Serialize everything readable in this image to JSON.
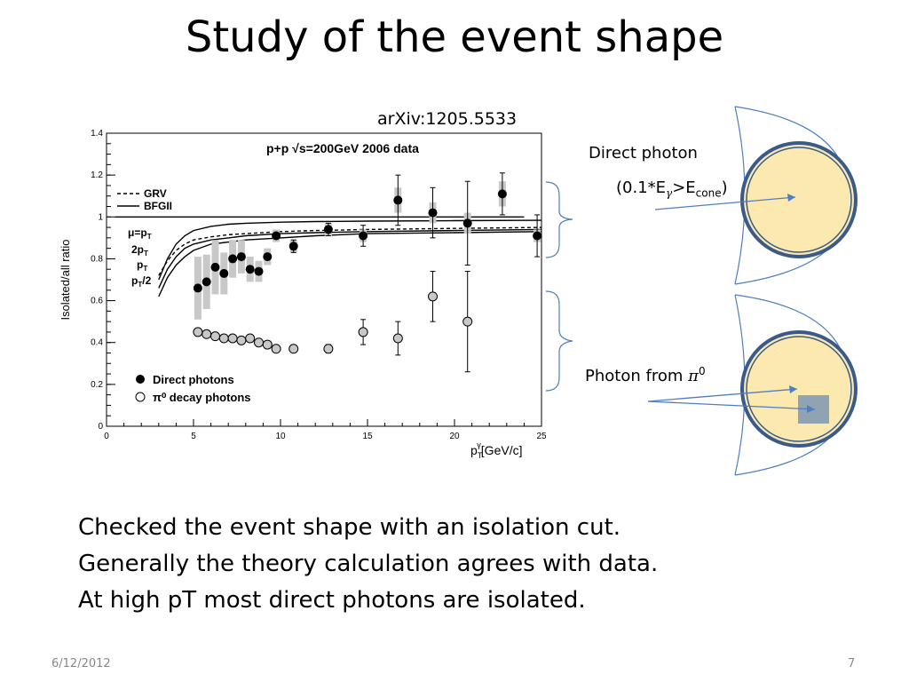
{
  "slide": {
    "title": "Study of the event shape",
    "reference": "arXiv:1205.5533",
    "bullets": [
      "Checked the event shape with an isolation cut.",
      "Generally the theory calculation agrees with data.",
      "At high pT most direct photons are isolated."
    ],
    "footer_date": "6/12/2012",
    "page_number": "7"
  },
  "diagram": {
    "direct_label": "Direct photon",
    "direct_cond_open": "(0.1*E",
    "direct_cond_gamma": "γ",
    "direct_cond_gt": ">E",
    "direct_cond_cone": "cone",
    "direct_cond_close": ")",
    "pi0_label": "Photon from ",
    "pi0_symbol": "π",
    "pi0_sup": "0",
    "colors": {
      "cone_fill": "#fbe9b0",
      "ring": "#3a5a8c",
      "arrow": "#4f7fbf",
      "brace": "#4f7fbf",
      "cluster": "#8fa3b3"
    }
  },
  "chart_data": {
    "type": "scatter",
    "header": "p+p   √s=200GeV 2006 data",
    "ylabel": "Isolated/all ratio",
    "xlabel": "p",
    "xlabel_sub": "T",
    "xlabel_sup": "γ",
    "xlabel_unit": "[GeV/c]",
    "xlim": [
      0,
      25
    ],
    "ylim": [
      0,
      1.4
    ],
    "xticks": [
      0,
      5,
      10,
      15,
      20,
      25
    ],
    "yticks": [
      0,
      0.2,
      0.4,
      0.6,
      0.8,
      1,
      1.2,
      1.4
    ],
    "legend_top": [
      {
        "name": "GRV",
        "style": "dashed"
      },
      {
        "name": "BFGII",
        "style": "solid"
      }
    ],
    "scale_labels": [
      "μ=p",
      "2p",
      "p",
      "p /2"
    ],
    "scale_label_text": {
      "mu": "μ=p",
      "mu_sub": "T",
      "two": "2p",
      "two_sub": "T",
      "one": "p",
      "one_sub": "T",
      "half": "p",
      "half_sub": "T",
      "half_tail": "/2"
    },
    "legend_bottom": [
      {
        "name": "Direct photons",
        "marker": "filled"
      },
      {
        "name": "π⁰ decay photons",
        "marker": "open"
      }
    ],
    "series": [
      {
        "name": "Direct photons",
        "marker": "filled",
        "points": [
          {
            "x": 5.25,
            "y": 0.66,
            "sys": 0.15
          },
          {
            "x": 5.75,
            "y": 0.69,
            "sys": 0.13
          },
          {
            "x": 6.25,
            "y": 0.76,
            "sys": 0.13
          },
          {
            "x": 6.75,
            "y": 0.73,
            "sys": 0.1
          },
          {
            "x": 7.25,
            "y": 0.8,
            "sys": 0.09
          },
          {
            "x": 7.75,
            "y": 0.81,
            "sys": 0.08
          },
          {
            "x": 8.25,
            "y": 0.75,
            "sys": 0.06
          },
          {
            "x": 8.75,
            "y": 0.74,
            "sys": 0.05
          },
          {
            "x": 9.25,
            "y": 0.81,
            "sys": 0.04
          },
          {
            "x": 9.75,
            "y": 0.91,
            "sys": 0.03
          },
          {
            "x": 10.75,
            "y": 0.86,
            "sys": 0.03,
            "err": 0.03
          },
          {
            "x": 12.75,
            "y": 0.94,
            "sys": 0.03,
            "err": 0.03
          },
          {
            "x": 14.75,
            "y": 0.91,
            "sys": 0.03,
            "err": 0.05
          },
          {
            "x": 16.75,
            "y": 1.08,
            "sys": 0.06,
            "err": 0.12
          },
          {
            "x": 18.75,
            "y": 1.02,
            "sys": 0.05,
            "err": 0.12
          },
          {
            "x": 20.75,
            "y": 0.97,
            "sys": 0.05,
            "err": 0.2
          },
          {
            "x": 22.75,
            "y": 1.11,
            "sys": 0.06,
            "err": 0.1
          },
          {
            "x": 24.75,
            "y": 0.91,
            "sys": 0.03,
            "err": 0.1
          }
        ]
      },
      {
        "name": "π⁰ decay photons",
        "marker": "open",
        "points": [
          {
            "x": 5.25,
            "y": 0.45
          },
          {
            "x": 5.75,
            "y": 0.44
          },
          {
            "x": 6.25,
            "y": 0.43
          },
          {
            "x": 6.75,
            "y": 0.42
          },
          {
            "x": 7.25,
            "y": 0.42
          },
          {
            "x": 7.75,
            "y": 0.41
          },
          {
            "x": 8.25,
            "y": 0.42
          },
          {
            "x": 8.75,
            "y": 0.4
          },
          {
            "x": 9.25,
            "y": 0.39
          },
          {
            "x": 9.75,
            "y": 0.37
          },
          {
            "x": 10.75,
            "y": 0.37
          },
          {
            "x": 12.75,
            "y": 0.37,
            "err": 0.02
          },
          {
            "x": 14.75,
            "y": 0.45,
            "err": 0.06
          },
          {
            "x": 16.75,
            "y": 0.42,
            "err": 0.08
          },
          {
            "x": 18.75,
            "y": 0.62,
            "err": 0.12
          },
          {
            "x": 20.75,
            "y": 0.5,
            "err": 0.24
          }
        ]
      }
    ],
    "curves": [
      {
        "name": "GRV μ=pT",
        "style": "dashed",
        "x": [
          3.0,
          3.5,
          4.0,
          4.5,
          5.0,
          6.0,
          7.0,
          8.0,
          10.0,
          12.0,
          15.0,
          20.0,
          25.0
        ],
        "y": [
          0.72,
          0.79,
          0.84,
          0.87,
          0.89,
          0.905,
          0.915,
          0.92,
          0.93,
          0.935,
          0.94,
          0.945,
          0.95
        ]
      },
      {
        "name": "BFGII pT/2",
        "style": "solid",
        "x": [
          3.0,
          3.5,
          4.0,
          4.5,
          5.0,
          6.0,
          7.0,
          8.0,
          10.0,
          12.0,
          15.0,
          20.0,
          25.0
        ],
        "y": [
          0.62,
          0.71,
          0.77,
          0.81,
          0.84,
          0.87,
          0.88,
          0.89,
          0.9,
          0.91,
          0.92,
          0.925,
          0.93
        ]
      },
      {
        "name": "BFGII pT",
        "style": "solid",
        "x": [
          3.0,
          3.5,
          4.0,
          4.5,
          5.0,
          6.0,
          7.0,
          8.0,
          10.0,
          12.0,
          15.0,
          20.0,
          25.0
        ],
        "y": [
          0.66,
          0.75,
          0.81,
          0.85,
          0.87,
          0.89,
          0.9,
          0.91,
          0.92,
          0.925,
          0.93,
          0.935,
          0.94
        ]
      },
      {
        "name": "BFGII 2pT",
        "style": "solid",
        "x": [
          3.0,
          3.5,
          4.0,
          4.5,
          5.0,
          6.0,
          7.0,
          8.0,
          10.0,
          12.0,
          15.0,
          20.0,
          25.0
        ],
        "y": [
          0.7,
          0.8,
          0.87,
          0.91,
          0.935,
          0.955,
          0.965,
          0.97,
          0.975,
          0.978,
          0.98,
          0.982,
          0.984
        ]
      },
      {
        "name": "reference",
        "style": "solid",
        "x": [
          0.5,
          24.0
        ],
        "y": [
          1.0,
          1.0
        ]
      }
    ]
  }
}
